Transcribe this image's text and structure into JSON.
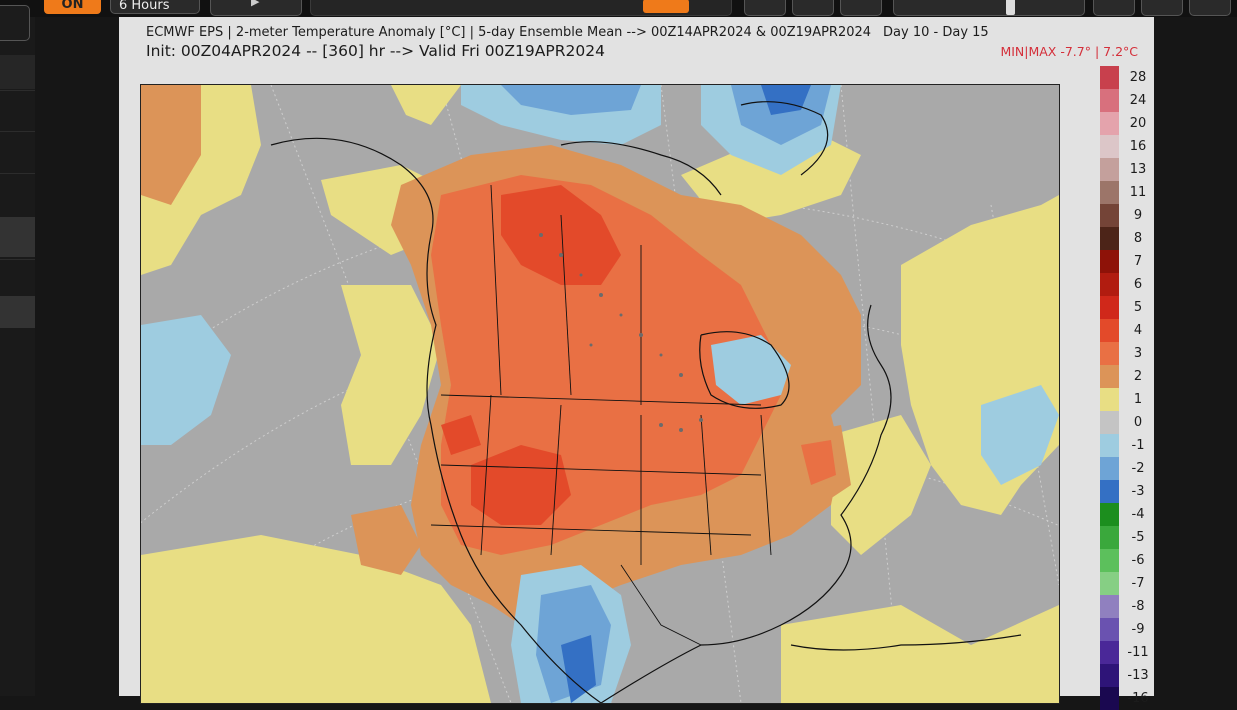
{
  "toolbar": {
    "on_label": "ON",
    "hours_label": "6 Hours"
  },
  "chart": {
    "title_line1": "ECMWF EPS | 2-meter Temperature Anomaly [°C] | 5-day Ensemble Mean --> 00Z14APR2024 & 00Z19APR2024",
    "title_line1_days": "Day 10 - Day 15",
    "title_line2": "Init: 00Z04APR2024 -- [360] hr --> Valid Fri 00Z19APR2024",
    "minmax": "MIN|MAX -7.7° | 7.2°C"
  },
  "colorbar": {
    "labels": [
      "28",
      "24",
      "20",
      "16",
      "13",
      "11",
      "9",
      "8",
      "7",
      "6",
      "5",
      "4",
      "3",
      "2",
      "1",
      "0",
      "-1",
      "-2",
      "-3",
      "-4",
      "-5",
      "-6",
      "-7",
      "-8",
      "-9",
      "-11",
      "-13",
      "-16"
    ],
    "colors": [
      "#c8404d",
      "#d8707d",
      "#e4a3ac",
      "#dcc6c8",
      "#c4a09c",
      "#9c7569",
      "#744437",
      "#4c2418",
      "#8e1208",
      "#b11c10",
      "#d0281a",
      "#e34a2a",
      "#e97044",
      "#dc9458",
      "#e8de84",
      "#c4c4c4",
      "#9ecce0",
      "#6ea4d6",
      "#3470c4",
      "#1c8e1e",
      "#3aa83c",
      "#5cc05c",
      "#86cf84",
      "#9080bf",
      "#6a52b0",
      "#4a2898",
      "#2e1478",
      "#1a0850"
    ]
  },
  "map_colors": {
    "gray": "#a9a9a9",
    "yellow": "#e8de84",
    "orange_light": "#dc9458",
    "orange": "#e97044",
    "red": "#e34a2a",
    "blue_light": "#9ecce0",
    "blue": "#6ea4d6",
    "blue_dark": "#3470c4"
  }
}
